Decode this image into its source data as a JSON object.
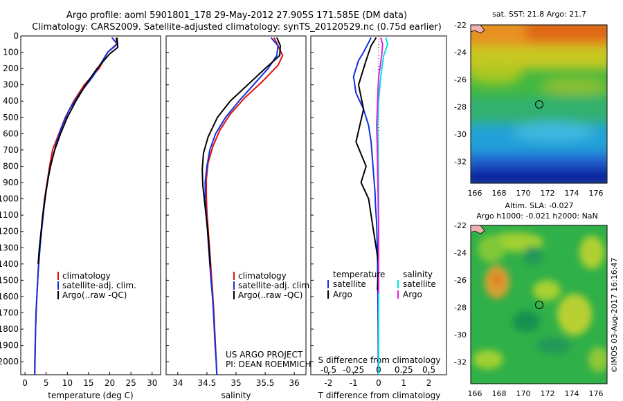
{
  "title": {
    "line1": "Argo profile: aoml 5901801_178 29-May-2012 27.905S 171.585E (DM data)",
    "line2": "Climatology: CARS2009. Satellite-adjusted climatology: synTS_20120529.nc (0.75d earlier)"
  },
  "colors": {
    "climatology": "#e01010",
    "satellite": "#1030e0",
    "argo": "#000000",
    "sal_satellite": "#00e0e0",
    "sal_argo": "#e020e0"
  },
  "panels": {
    "temp": {
      "xlabel": "temperature (deg C)",
      "xticks": [
        "0",
        "5",
        "10",
        "15",
        "20",
        "25",
        "30"
      ],
      "legend": [
        "climatology",
        "satellite-adj. clim.",
        "Argo(..raw -QC)"
      ]
    },
    "sal": {
      "xlabel": "salinity",
      "xticks": [
        "34",
        "34.5",
        "35",
        "35.5",
        "36"
      ],
      "legend": [
        "climatology",
        "satellite-adj. clim.",
        "Argo(..raw -QC)"
      ],
      "project": [
        "US ARGO PROJECT",
        "PI: DEAN ROEMMICH"
      ]
    },
    "diff": {
      "xlabel": "T difference from climatology",
      "xticks": [
        "-2",
        "-1",
        "0",
        "1",
        "2"
      ],
      "top_label": "S difference from climatology",
      "top_ticks": [
        "-0.5",
        "-0.25",
        "0",
        "0.25",
        "0.5"
      ],
      "legend_temp_head": "temperature",
      "legend_sal_head": "salinity",
      "legend_labels": [
        "satellite",
        "Argo",
        "satellite",
        "Argo"
      ]
    }
  },
  "yticks": [
    "0",
    "100",
    "200",
    "300",
    "400",
    "500",
    "600",
    "700",
    "800",
    "900",
    "1000",
    "1100",
    "1200",
    "1300",
    "1400",
    "1500",
    "1600",
    "1700",
    "1800",
    "1900",
    "2000"
  ],
  "maps": {
    "sst_title": "sat. SST: 21.8 Argo: 21.7",
    "sla_title1": "Altim. SLA: -0.027",
    "sla_title2": "Argo h1000: -0.021 h2000: NaN",
    "lat_ticks": [
      "-22",
      "-24",
      "-26",
      "-28",
      "-30",
      "-32"
    ],
    "lon_ticks": [
      "166",
      "168",
      "170",
      "172",
      "174",
      "176"
    ]
  },
  "credit": "©IMOS 03-Aug-2017 16:16:47",
  "chart_data": [
    {
      "type": "line",
      "xlabel": "temperature (deg C)",
      "ylim": [
        2080,
        0
      ],
      "xlim": [
        -1,
        32
      ],
      "series": [
        {
          "name": "climatology",
          "points": [
            [
              21.5,
              10
            ],
            [
              21.6,
              50
            ],
            [
              19.5,
              100
            ],
            [
              17.5,
              200
            ],
            [
              14,
              300
            ],
            [
              11.5,
              400
            ],
            [
              9.5,
              500
            ],
            [
              8,
              600
            ],
            [
              6.5,
              700
            ],
            [
              5.8,
              800
            ],
            [
              5.2,
              900
            ],
            [
              4.6,
              1000
            ],
            [
              4.2,
              1100
            ],
            [
              3.8,
              1200
            ],
            [
              3.5,
              1300
            ],
            [
              3.2,
              1400
            ],
            [
              3,
              1500
            ],
            [
              2.8,
              1600
            ],
            [
              2.6,
              1700
            ],
            [
              2.5,
              1800
            ],
            [
              2.4,
              1900
            ],
            [
              2.3,
              2000
            ],
            [
              2.3,
              2080
            ]
          ]
        },
        {
          "name": "satellite-adj. clim.",
          "points": [
            [
              20.5,
              10
            ],
            [
              21.8,
              50
            ],
            [
              19.5,
              100
            ],
            [
              16,
              250
            ],
            [
              13,
              350
            ],
            [
              10.5,
              450
            ],
            [
              8.8,
              550
            ],
            [
              7.5,
              650
            ],
            [
              6.5,
              750
            ],
            [
              5.6,
              850
            ],
            [
              5,
              950
            ],
            [
              4.5,
              1050
            ],
            [
              4.1,
              1150
            ],
            [
              3.7,
              1250
            ],
            [
              3.4,
              1350
            ],
            [
              3.1,
              1450
            ],
            [
              2.9,
              1550
            ],
            [
              2.7,
              1650
            ],
            [
              2.5,
              1800
            ],
            [
              2.4,
              1950
            ],
            [
              2.3,
              2080
            ]
          ]
        },
        {
          "name": "Argo(..raw -QC)",
          "points": [
            [
              21.7,
              10
            ],
            [
              21.9,
              70
            ],
            [
              20,
              110
            ],
            [
              17,
              200
            ],
            [
              14.3,
              300
            ],
            [
              12,
              400
            ],
            [
              10,
              500
            ],
            [
              8.4,
              600
            ],
            [
              7,
              700
            ],
            [
              6,
              800
            ],
            [
              5.3,
              900
            ],
            [
              4.7,
              1000
            ],
            [
              4.2,
              1100
            ],
            [
              3.8,
              1200
            ],
            [
              3.4,
              1300
            ],
            [
              3.1,
              1400
            ]
          ]
        }
      ]
    },
    {
      "type": "line",
      "xlabel": "salinity",
      "ylim": [
        2080,
        0
      ],
      "xlim": [
        33.8,
        36.2
      ],
      "series": [
        {
          "name": "climatology",
          "points": [
            [
              35.65,
              10
            ],
            [
              35.72,
              60
            ],
            [
              35.8,
              120
            ],
            [
              35.72,
              180
            ],
            [
              35.45,
              280
            ],
            [
              35.15,
              380
            ],
            [
              34.9,
              480
            ],
            [
              34.72,
              580
            ],
            [
              34.6,
              680
            ],
            [
              34.52,
              780
            ],
            [
              34.49,
              880
            ],
            [
              34.49,
              980
            ],
            [
              34.5,
              1080
            ],
            [
              34.52,
              1180
            ],
            [
              34.54,
              1280
            ],
            [
              34.56,
              1380
            ],
            [
              34.58,
              1480
            ],
            [
              34.6,
              1580
            ],
            [
              34.62,
              1700
            ],
            [
              34.64,
              1850
            ],
            [
              34.66,
              2000
            ],
            [
              34.67,
              2080
            ]
          ]
        },
        {
          "name": "satellite-adj. clim.",
          "points": [
            [
              35.6,
              10
            ],
            [
              35.72,
              60
            ],
            [
              35.7,
              120
            ],
            [
              35.55,
              200
            ],
            [
              35.3,
              300
            ],
            [
              35.05,
              400
            ],
            [
              34.82,
              500
            ],
            [
              34.65,
              600
            ],
            [
              34.55,
              700
            ],
            [
              34.5,
              800
            ],
            [
              34.47,
              900
            ],
            [
              34.47,
              1000
            ],
            [
              34.49,
              1100
            ],
            [
              34.51,
              1200
            ],
            [
              34.53,
              1300
            ],
            [
              34.55,
              1400
            ],
            [
              34.57,
              1500
            ],
            [
              34.6,
              1620
            ],
            [
              34.62,
              1750
            ],
            [
              34.64,
              1900
            ],
            [
              34.66,
              2000
            ],
            [
              34.67,
              2080
            ]
          ]
        },
        {
          "name": "Argo(..raw -QC)",
          "points": [
            [
              35.7,
              10
            ],
            [
              35.76,
              60
            ],
            [
              35.75,
              120
            ],
            [
              35.5,
              200
            ],
            [
              35.2,
              300
            ],
            [
              34.9,
              400
            ],
            [
              34.68,
              500
            ],
            [
              34.52,
              620
            ],
            [
              34.44,
              720
            ],
            [
              34.42,
              820
            ],
            [
              34.43,
              920
            ],
            [
              34.46,
              1020
            ],
            [
              34.49,
              1120
            ],
            [
              34.52,
              1220
            ],
            [
              34.54,
              1320
            ],
            [
              34.56,
              1420
            ]
          ]
        }
      ]
    },
    {
      "type": "line",
      "xlabel": "T difference from climatology",
      "ylim": [
        2080,
        0
      ],
      "xlim": [
        -2.7,
        2.7
      ],
      "series": [
        {
          "name": "satellite",
          "points": [
            [
              -0.3,
              10
            ],
            [
              -0.4,
              40
            ],
            [
              -0.6,
              100
            ],
            [
              -0.8,
              150
            ],
            [
              -1.0,
              250
            ],
            [
              -0.9,
              350
            ],
            [
              -0.6,
              450
            ],
            [
              -0.4,
              550
            ],
            [
              -0.3,
              650
            ],
            [
              -0.25,
              750
            ],
            [
              -0.2,
              850
            ],
            [
              -0.15,
              950
            ],
            [
              -0.12,
              1050
            ],
            [
              -0.08,
              1150
            ],
            [
              -0.06,
              1250
            ],
            [
              -0.04,
              1400
            ],
            [
              -0.03,
              1600
            ],
            [
              -0.02,
              1800
            ],
            [
              -0.01,
              2080
            ]
          ]
        },
        {
          "name": "Argo",
          "points": [
            [
              -0.1,
              10
            ],
            [
              -0.3,
              60
            ],
            [
              -0.5,
              150
            ],
            [
              -0.8,
              300
            ],
            [
              -0.6,
              450
            ],
            [
              -0.9,
              650
            ],
            [
              -0.5,
              800
            ],
            [
              -0.7,
              900
            ],
            [
              -0.4,
              1000
            ],
            [
              -0.3,
              1100
            ],
            [
              -0.2,
              1200
            ],
            [
              -0.1,
              1300
            ],
            [
              0,
              1400
            ],
            [
              -0.05,
              1560
            ]
          ]
        }
      ]
    },
    {
      "type": "line",
      "xlabel": "S difference from climatology",
      "ylim": [
        2080,
        0
      ],
      "xlim": [
        -0.675,
        0.675
      ],
      "series": [
        {
          "name": "satellite",
          "points": [
            [
              0.07,
              10
            ],
            [
              0.09,
              50
            ],
            [
              0.05,
              120
            ],
            [
              0.02,
              250
            ],
            [
              0.0,
              400
            ],
            [
              -0.01,
              550
            ],
            [
              -0.005,
              700
            ],
            [
              0,
              1000
            ],
            [
              0,
              1300
            ],
            [
              0,
              1600
            ],
            [
              0,
              1900
            ],
            [
              0,
              2080
            ]
          ]
        },
        {
          "name": "Argo",
          "points": [
            [
              0.02,
              10
            ],
            [
              0.04,
              50
            ],
            [
              0.03,
              120
            ],
            [
              0.0,
              250
            ],
            [
              -0.01,
              400
            ],
            [
              -0.02,
              550
            ],
            [
              -0.015,
              650
            ],
            [
              -0.01,
              800
            ],
            [
              -0.005,
              1000
            ],
            [
              0,
              1200
            ],
            [
              0,
              1400
            ],
            [
              0,
              1580
            ]
          ]
        }
      ]
    }
  ]
}
